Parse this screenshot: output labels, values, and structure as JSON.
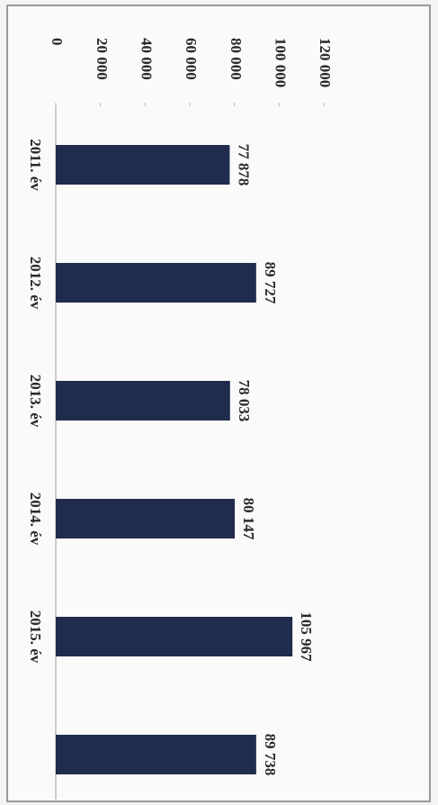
{
  "chart_data": {
    "type": "bar",
    "orientation": "rotated",
    "categories": [
      "2011. év",
      "2012. év",
      "2013. év",
      "2014. év",
      "2015. év",
      null
    ],
    "values": [
      77878,
      89727,
      78033,
      80147,
      105967,
      89738
    ],
    "value_labels": [
      "77 878",
      "89 727",
      "78 033",
      "80 147",
      "105 967",
      "89 738"
    ],
    "color": "#1f2c4e",
    "ylim": [
      0,
      120000
    ],
    "yticks": [
      0,
      {
        "value": 20000,
        "label": "20 000"
      },
      {
        "value": 40000,
        "label": "40 000"
      },
      {
        "value": 60000,
        "label": "60 000"
      },
      {
        "value": 80000,
        "label": "80 000"
      },
      {
        "value": 100000,
        "label": "100 000"
      },
      {
        "value": 120000,
        "label": "120 000"
      }
    ],
    "grid": false
  }
}
